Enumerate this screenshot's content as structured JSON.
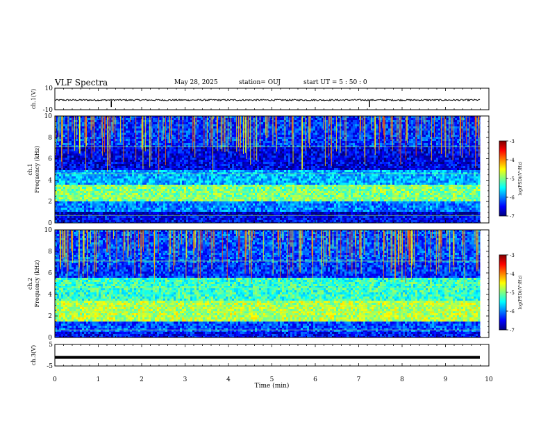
{
  "header": {
    "title": "VLF Spectra",
    "date": "May 28, 2025",
    "station": "station= OUJ",
    "start": "start  UT =   5 : 50 : 0"
  },
  "colorbar_ticks": [
    "-3",
    "-4",
    "-5",
    "-6",
    "-7"
  ],
  "colorbar_label": "log(PSD)(V²/Hz)",
  "colors": {
    "colormap": [
      "#00007f",
      "#0000ff",
      "#0080ff",
      "#00ffff",
      "#80ff80",
      "#ffff00",
      "#ff8000",
      "#ff0000",
      "#7f0000"
    ]
  },
  "chart_data": [
    {
      "type": "line",
      "name": "ch.1 waveform",
      "ylabel": "ch.1(V)",
      "ylim": [
        -10,
        10
      ],
      "y_tick_labels": [
        "10",
        "-10"
      ],
      "x": [
        0,
        1,
        2,
        3,
        4,
        5,
        6,
        7,
        8,
        9,
        9.8
      ],
      "y": [
        -1,
        -1,
        -1,
        -1,
        -1,
        -1,
        -1,
        -1,
        -1,
        -1,
        -1
      ],
      "spikes_at_min": [
        1.3,
        7.25
      ]
    },
    {
      "type": "heatmap",
      "name": "ch.1 spectrogram",
      "ylabel": "ch.1 Frequency (kHz)",
      "ylim": [
        0,
        10
      ],
      "y_ticks": [
        0,
        2,
        4,
        6,
        8,
        10
      ],
      "xlim": [
        0,
        10
      ],
      "data_end_min": 9.8,
      "colorbar_range": [
        -7,
        -3
      ],
      "bands_kHz": [
        {
          "from": 0,
          "to": 0.6,
          "level": -6.5
        },
        {
          "from": 0.6,
          "to": 1.0,
          "level": -6.8
        },
        {
          "from": 1.0,
          "to": 2.0,
          "level": -6.0
        },
        {
          "from": 2.0,
          "to": 3.5,
          "level": -5.0
        },
        {
          "from": 3.5,
          "to": 5.0,
          "level": -5.8
        },
        {
          "from": 5.0,
          "to": 7.0,
          "level": -6.6
        },
        {
          "from": 7.0,
          "to": 10.0,
          "level": -6.3
        }
      ]
    },
    {
      "type": "heatmap",
      "name": "ch.2 spectrogram",
      "ylabel": "ch.2 Frequency (kHz)",
      "ylim": [
        0,
        10
      ],
      "y_ticks": [
        0,
        2,
        4,
        6,
        8,
        10
      ],
      "xlim": [
        0,
        10
      ],
      "data_end_min": 9.8,
      "colorbar_range": [
        -7,
        -3
      ],
      "bands_kHz": [
        {
          "from": 0,
          "to": 0.6,
          "level": -6.5
        },
        {
          "from": 0.6,
          "to": 1.5,
          "level": -6.2
        },
        {
          "from": 1.5,
          "to": 3.5,
          "level": -4.8
        },
        {
          "from": 3.5,
          "to": 5.5,
          "level": -5.3
        },
        {
          "from": 5.5,
          "to": 7.0,
          "level": -6.3
        },
        {
          "from": 7.0,
          "to": 10.0,
          "level": -6.2
        }
      ]
    },
    {
      "type": "line",
      "name": "ch.3 waveform",
      "ylabel": "ch.3(V)",
      "ylim": [
        -5,
        5
      ],
      "y_tick_labels": [
        "5",
        "-5"
      ],
      "x": [
        0,
        9.8
      ],
      "y": [
        -1,
        -1
      ]
    }
  ],
  "xaxis": {
    "label": "Time  (min)",
    "ticks": [
      "0",
      "1",
      "2",
      "3",
      "4",
      "5",
      "6",
      "7",
      "8",
      "9",
      "10"
    ],
    "range": [
      0,
      10
    ]
  }
}
